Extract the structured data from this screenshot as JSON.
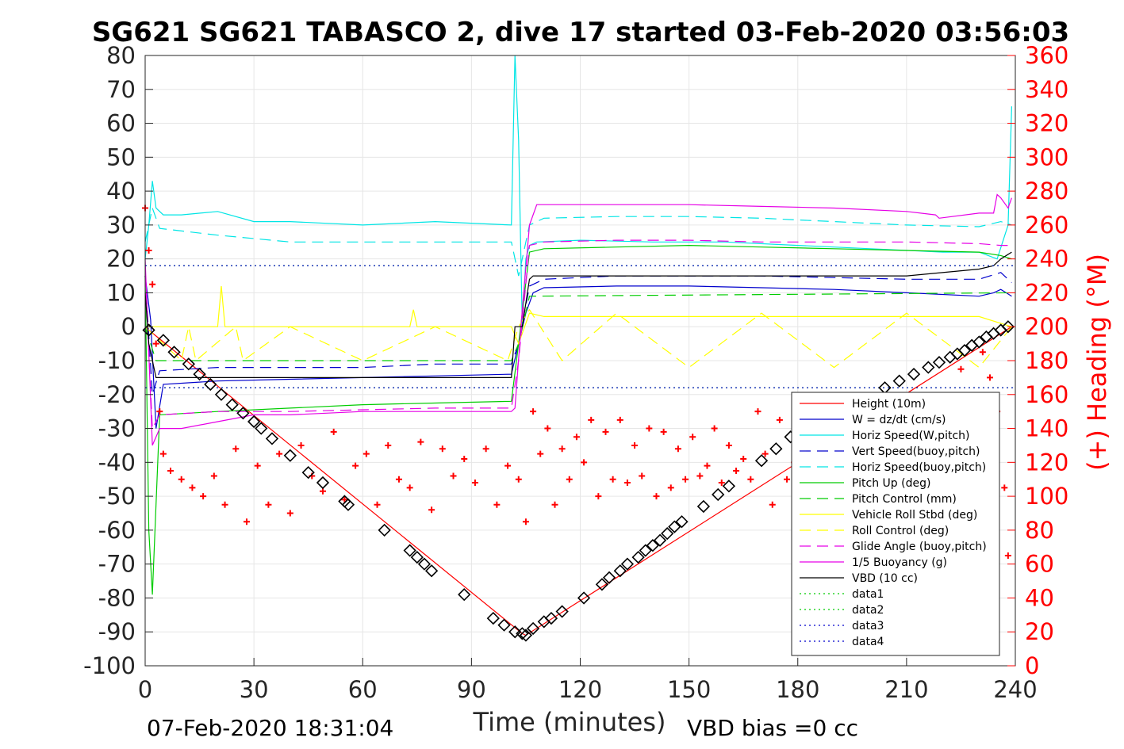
{
  "chart_data": {
    "type": "line",
    "title": "SG621 SG621 TABASCO 2, dive 17 started 03-Feb-2020 03:56:03",
    "xlabel": "Time (minutes)",
    "ylabel": "",
    "y2label": "(+) Heading (°M)",
    "xlim": [
      0,
      240
    ],
    "ylim": [
      -100,
      80
    ],
    "y2lim": [
      0,
      360
    ],
    "xticks": [
      "0",
      "30",
      "60",
      "90",
      "120",
      "150",
      "180",
      "210",
      "240"
    ],
    "yticks": [
      "80",
      "70",
      "60",
      "50",
      "40",
      "30",
      "20",
      "10",
      "0",
      "-10",
      "-20",
      "-30",
      "-40",
      "-50",
      "-60",
      "-70",
      "-80",
      "-90",
      "-100"
    ],
    "y2ticks": [
      "360",
      "340",
      "320",
      "300",
      "280",
      "260",
      "240",
      "220",
      "200",
      "180",
      "160",
      "140",
      "120",
      "100",
      "80",
      "60",
      "40",
      "20",
      "0"
    ],
    "grid": true,
    "legend_position": "bottom-right",
    "footer_left": "07-Feb-2020 18:31:04",
    "footer_right": "VBD bias =0 cc",
    "colors": {
      "red": "#ff0000",
      "blue": "#0000cc",
      "cyan": "#00e5e5",
      "green": "#00cc00",
      "yellow": "#ffff00",
      "magenta": "#e600e6",
      "black": "#000000"
    },
    "legend": [
      {
        "label": "Height (10m)",
        "color": "#ff0000",
        "dash": "solid"
      },
      {
        "label": "W = dz/dt (cm/s)",
        "color": "#0000cc",
        "dash": "solid"
      },
      {
        "label": "Horiz Speed(W,pitch)",
        "color": "#00e5e5",
        "dash": "solid"
      },
      {
        "label": "Vert Speed(buoy,pitch)",
        "color": "#0000cc",
        "dash": "dashed"
      },
      {
        "label": "Horiz Speed(buoy,pitch)",
        "color": "#00e5e5",
        "dash": "dashed"
      },
      {
        "label": "Pitch Up (deg)",
        "color": "#00cc00",
        "dash": "solid"
      },
      {
        "label": "Pitch Control (mm)",
        "color": "#00cc00",
        "dash": "dashed"
      },
      {
        "label": "Vehicle Roll Stbd (deg)",
        "color": "#ffff00",
        "dash": "solid"
      },
      {
        "label": "Roll Control (deg)",
        "color": "#ffff00",
        "dash": "dashed"
      },
      {
        "label": "Glide Angle (buoy,pitch)",
        "color": "#e600e6",
        "dash": "dashed"
      },
      {
        "label": "1/5 Buoyancy (g)",
        "color": "#e600e6",
        "dash": "solid"
      },
      {
        "label": "VBD (10 cc)",
        "color": "#000000",
        "dash": "solid"
      },
      {
        "label": "data1",
        "color": "#00cc00",
        "dash": "dotted"
      },
      {
        "label": "data2",
        "color": "#00cc00",
        "dash": "dotted"
      },
      {
        "label": "data3",
        "color": "#0000cc",
        "dash": "dotted"
      },
      {
        "label": "data4",
        "color": "#0000cc",
        "dash": "dotted"
      }
    ],
    "series": [
      {
        "name": "Height (10m)",
        "color": "#ff0000",
        "dash": "solid",
        "x": [
          0,
          1,
          104,
          105,
          239
        ],
        "y": [
          0,
          -1,
          -90.5,
          -91,
          0
        ]
      },
      {
        "name": "W = dz/dt (cm/s)",
        "color": "#0000cc",
        "dash": "solid",
        "x": [
          0,
          1.5,
          3,
          5,
          20,
          40,
          60,
          80,
          101,
          103,
          105,
          107,
          110,
          130,
          150,
          170,
          190,
          210,
          230,
          234,
          236,
          239
        ],
        "y": [
          15,
          2,
          -30,
          -17,
          -16,
          -15.5,
          -15,
          -14.5,
          -14,
          -5,
          4,
          10,
          11.5,
          12,
          12,
          11.5,
          11,
          10,
          9,
          10,
          11,
          9
        ]
      },
      {
        "name": "Horiz Speed(W,pitch)",
        "color": "#00e5e5",
        "dash": "solid",
        "x": [
          0,
          1,
          2,
          3,
          5,
          10,
          20,
          30,
          40,
          60,
          80,
          101,
          102,
          103,
          104,
          105,
          106,
          108,
          120,
          140,
          160,
          180,
          200,
          220,
          230,
          235,
          238,
          239
        ],
        "y": [
          20,
          30,
          43,
          35,
          33,
          33,
          34,
          31,
          31,
          30,
          31,
          30,
          80,
          55,
          0,
          20,
          24,
          25,
          25.5,
          25,
          25,
          24,
          23,
          22,
          22,
          20,
          30,
          65
        ]
      },
      {
        "name": "Vert Speed(buoy,pitch)",
        "color": "#0000cc",
        "dash": "dashed",
        "x": [
          0,
          2,
          4,
          20,
          40,
          60,
          80,
          101,
          103,
          106,
          110,
          130,
          150,
          170,
          190,
          210,
          230,
          236,
          239
        ],
        "y": [
          15,
          -20,
          -13,
          -12,
          -12,
          -12,
          -11,
          -11,
          -5,
          12,
          14,
          15,
          15,
          15,
          14.5,
          14,
          14,
          16,
          13
        ]
      },
      {
        "name": "Horiz Speed(buoy,pitch)",
        "color": "#00e5e5",
        "dash": "dashed",
        "x": [
          0,
          2,
          4,
          20,
          40,
          60,
          80,
          101,
          103,
          106,
          110,
          130,
          150,
          170,
          190,
          210,
          230,
          236,
          239
        ],
        "y": [
          25,
          35,
          29,
          27,
          25,
          25,
          25,
          25,
          15,
          30,
          32,
          32.5,
          32.5,
          32,
          31,
          30,
          29.5,
          31,
          30
        ]
      },
      {
        "name": "Pitch Up (deg)",
        "color": "#00cc00",
        "dash": "solid",
        "x": [
          0,
          1,
          2,
          4,
          20,
          40,
          60,
          80,
          101,
          103,
          106,
          110,
          130,
          150,
          170,
          190,
          210,
          230,
          236,
          239
        ],
        "y": [
          15,
          -60,
          -79,
          -26,
          -25,
          -24,
          -23,
          -22.5,
          -22,
          -5,
          22,
          23,
          23.5,
          24,
          23.5,
          23,
          22.5,
          22,
          21,
          20
        ]
      },
      {
        "name": "Pitch Control (mm)",
        "color": "#00cc00",
        "dash": "dashed",
        "x": [
          0,
          3,
          5,
          101,
          103,
          106,
          239
        ],
        "y": [
          0,
          -10,
          -10,
          -10,
          -5,
          9,
          10
        ]
      },
      {
        "name": "Vehicle Roll Stbd (deg)",
        "color": "#ffff00",
        "dash": "solid",
        "x": [
          0,
          5,
          15,
          20,
          21,
          22,
          40,
          60,
          73,
          74,
          75,
          101,
          103,
          106,
          110,
          140,
          170,
          200,
          230,
          239
        ],
        "y": [
          0,
          0,
          0,
          0,
          12,
          0,
          0,
          0,
          0,
          5,
          0,
          0,
          -5,
          4,
          3,
          3,
          3,
          3,
          3,
          0
        ]
      },
      {
        "name": "Roll Control (deg)",
        "color": "#ffff00",
        "dash": "dashed",
        "x": [
          0,
          10,
          12,
          14,
          25,
          27,
          40,
          60,
          80,
          100,
          103,
          106,
          115,
          130,
          150,
          170,
          190,
          210,
          230,
          239
        ],
        "y": [
          0,
          -10,
          0,
          -10,
          0,
          -10,
          0,
          -10,
          0,
          -10,
          0,
          5,
          -10,
          4,
          -12,
          4,
          -12,
          4,
          -12,
          0
        ]
      },
      {
        "name": "Glide Angle (buoy,pitch)",
        "color": "#e600e6",
        "dash": "dashed",
        "x": [
          0,
          2,
          4,
          20,
          40,
          60,
          80,
          101,
          103,
          106,
          110,
          130,
          150,
          170,
          190,
          210,
          230,
          236,
          239
        ],
        "y": [
          15,
          -30,
          -26,
          -25,
          -25,
          -24.5,
          -24,
          -24,
          -10,
          24,
          25,
          25.5,
          25.5,
          25,
          25,
          25,
          24.5,
          24,
          24
        ]
      },
      {
        "name": "1/5 Buoyancy (g)",
        "color": "#e600e6",
        "dash": "solid",
        "x": [
          0,
          2,
          4,
          10,
          20,
          30,
          40,
          60,
          80,
          101,
          102,
          104,
          106,
          108,
          130,
          150,
          170,
          190,
          210,
          218,
          219,
          230,
          234,
          235,
          236,
          238,
          239
        ],
        "y": [
          20,
          -35,
          -30,
          -30,
          -28,
          -26,
          -26,
          -25,
          -25,
          -25,
          -24,
          5,
          30,
          36,
          36,
          36,
          35.5,
          35,
          34,
          33,
          32,
          33.5,
          33.5,
          39,
          38,
          35,
          38
        ]
      },
      {
        "name": "VBD (10 cc)",
        "color": "#000000",
        "dash": "solid",
        "x": [
          0,
          1,
          3,
          4,
          60,
          80,
          101,
          102,
          104,
          106,
          107,
          140,
          180,
          200,
          210,
          230,
          234,
          236,
          239
        ],
        "y": [
          10,
          -5,
          -15,
          -15,
          -15,
          -15,
          -15,
          0,
          0,
          14,
          15,
          15,
          15,
          15,
          15,
          17,
          18,
          20,
          22
        ]
      },
      {
        "name": "data1",
        "color": "#00cc00",
        "dash": "dotted",
        "x": [
          0,
          240
        ],
        "y": [
          18,
          18
        ]
      },
      {
        "name": "data2",
        "color": "#00cc00",
        "dash": "dotted",
        "x": [
          0,
          240
        ],
        "y": [
          -18,
          -18
        ]
      },
      {
        "name": "data3",
        "color": "#0000cc",
        "dash": "dotted",
        "x": [
          0,
          240
        ],
        "y": [
          18,
          18
        ]
      },
      {
        "name": "data4",
        "color": "#0000cc",
        "dash": "dotted",
        "x": [
          0,
          240
        ],
        "y": [
          -18,
          -18
        ]
      }
    ],
    "depth_markers": {
      "color": "#000000",
      "x": [
        1,
        5,
        8,
        12,
        15,
        18,
        21,
        24,
        27,
        30,
        32,
        35,
        40,
        45,
        49,
        55,
        56,
        66,
        73,
        75,
        77,
        79,
        88,
        96,
        99,
        102,
        104,
        105,
        107,
        110,
        112,
        115,
        121,
        126,
        128,
        131,
        133,
        136,
        138,
        140,
        142,
        144,
        146,
        148,
        154,
        158,
        161,
        170,
        174,
        178,
        204,
        208,
        212,
        216,
        219,
        222,
        224,
        226,
        228,
        230,
        232,
        234,
        236,
        238
      ],
      "y": [
        -1,
        -4,
        -7.5,
        -11,
        -14,
        -17,
        -20,
        -23,
        -25.5,
        -28,
        -30,
        -33,
        -38,
        -43,
        -46,
        -51.5,
        -52.5,
        -60,
        -66,
        -68,
        -70,
        -72,
        -79,
        -86,
        -88,
        -90,
        -90.5,
        -91,
        -89,
        -87,
        -86,
        -84,
        -80,
        -76,
        -74,
        -72,
        -70,
        -68,
        -66,
        -64.5,
        -63,
        -61,
        -59,
        -57.5,
        -53,
        -49.5,
        -47,
        -39.5,
        -36,
        -32.5,
        -18,
        -16,
        -14,
        -12,
        -10.5,
        -9,
        -8,
        -7,
        -5.5,
        -4.5,
        -3,
        -2,
        -1,
        0
      ]
    },
    "heading": {
      "color": "#ff0000",
      "x": [
        0,
        1,
        2,
        3,
        4,
        5,
        7,
        10,
        13,
        16,
        19,
        22,
        25,
        28,
        31,
        34,
        37,
        40,
        43,
        46,
        49,
        52,
        55,
        58,
        61,
        64,
        67,
        70,
        73,
        76,
        79,
        82,
        85,
        88,
        91,
        94,
        97,
        100,
        103,
        105,
        107,
        109,
        111,
        113,
        115,
        117,
        119,
        121,
        123,
        125,
        127,
        129,
        131,
        133,
        135,
        137,
        139,
        141,
        143,
        145,
        147,
        149,
        151,
        153,
        155,
        157,
        159,
        161,
        163,
        165,
        167,
        169,
        171,
        173,
        175,
        177,
        179,
        225,
        228,
        231,
        233,
        235,
        237,
        238
      ],
      "y": [
        270,
        245,
        225,
        190,
        150,
        125,
        115,
        110,
        105,
        100,
        112,
        95,
        128,
        85,
        118,
        95,
        125,
        90,
        130,
        112,
        103,
        138,
        98,
        118,
        125,
        95,
        130,
        110,
        105,
        132,
        92,
        128,
        112,
        122,
        108,
        128,
        95,
        118,
        110,
        85,
        150,
        125,
        140,
        95,
        128,
        110,
        135,
        120,
        145,
        100,
        138,
        110,
        145,
        108,
        130,
        112,
        140,
        100,
        138,
        105,
        128,
        110,
        135,
        112,
        118,
        140,
        108,
        130,
        115,
        122,
        110,
        150,
        125,
        95,
        145,
        110,
        120,
        175,
        140,
        185,
        170,
        150,
        105,
        65
      ]
    }
  }
}
